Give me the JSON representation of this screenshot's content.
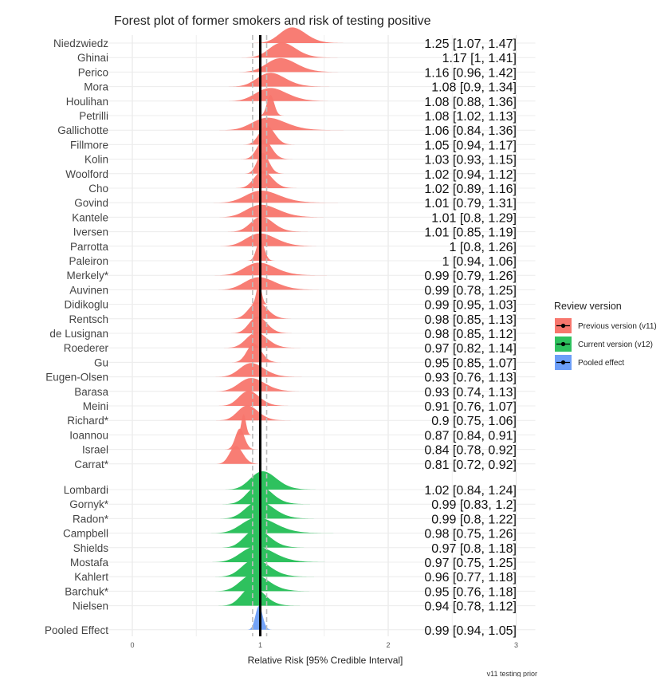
{
  "chart_data": {
    "type": "forest-ridgeline",
    "title": "Forest plot of former smokers and risk of testing positive",
    "xlabel": "Relative Risk [95% Credible Interval]",
    "xlim": [
      -0.2,
      3.15
    ],
    "xticks": [
      0,
      1,
      2,
      3
    ],
    "reference_line": 1,
    "pooled_interval": [
      0.94,
      1.05
    ],
    "caption": "v11 testing prior",
    "legend": {
      "title": "Review version",
      "position": "right",
      "entries": [
        {
          "label": "Previous version (v11)",
          "color": "#F8766D"
        },
        {
          "label": "Current version (v12)",
          "color": "#2EC15E"
        },
        {
          "label": "Pooled effect",
          "color": "#6C9EF8"
        }
      ]
    },
    "groups": [
      {
        "name": "Previous version (v11)",
        "color": "#F8766D",
        "studies": [
          {
            "study": "Niedzwiedz",
            "rr": 1.25,
            "lo": 1.07,
            "hi": 1.47,
            "label": "1.25 [1.07, 1.47]"
          },
          {
            "study": "Ghinai",
            "rr": 1.17,
            "lo": 1,
            "hi": 1.41,
            "label": "1.17 [1, 1.41]"
          },
          {
            "study": "Perico",
            "rr": 1.16,
            "lo": 0.96,
            "hi": 1.42,
            "label": "1.16 [0.96, 1.42]"
          },
          {
            "study": "Mora",
            "rr": 1.08,
            "lo": 0.9,
            "hi": 1.34,
            "label": "1.08 [0.9, 1.34]"
          },
          {
            "study": "Houlihan",
            "rr": 1.08,
            "lo": 0.88,
            "hi": 1.36,
            "label": "1.08 [0.88, 1.36]"
          },
          {
            "study": "Petrilli",
            "rr": 1.08,
            "lo": 1.02,
            "hi": 1.13,
            "label": "1.08 [1.02, 1.13]"
          },
          {
            "study": "Gallichotte",
            "rr": 1.06,
            "lo": 0.84,
            "hi": 1.36,
            "label": "1.06 [0.84, 1.36]"
          },
          {
            "study": "Fillmore",
            "rr": 1.05,
            "lo": 0.94,
            "hi": 1.17,
            "label": "1.05 [0.94, 1.17]"
          },
          {
            "study": "Kolin",
            "rr": 1.03,
            "lo": 0.93,
            "hi": 1.15,
            "label": "1.03 [0.93, 1.15]"
          },
          {
            "study": "Woolford",
            "rr": 1.02,
            "lo": 0.94,
            "hi": 1.12,
            "label": "1.02 [0.94, 1.12]"
          },
          {
            "study": "Cho",
            "rr": 1.02,
            "lo": 0.89,
            "hi": 1.16,
            "label": "1.02 [0.89, 1.16]"
          },
          {
            "study": "Govind",
            "rr": 1.01,
            "lo": 0.79,
            "hi": 1.31,
            "label": "1.01 [0.79, 1.31]"
          },
          {
            "study": "Kantele",
            "rr": 1.01,
            "lo": 0.8,
            "hi": 1.29,
            "label": "1.01 [0.8, 1.29]"
          },
          {
            "study": "Iversen",
            "rr": 1.01,
            "lo": 0.85,
            "hi": 1.19,
            "label": "1.01 [0.85, 1.19]"
          },
          {
            "study": "Parrotta",
            "rr": 1,
            "lo": 0.8,
            "hi": 1.26,
            "label": "1 [0.8, 1.26]"
          },
          {
            "study": "Paleiron",
            "rr": 1,
            "lo": 0.94,
            "hi": 1.06,
            "label": "1 [0.94, 1.06]"
          },
          {
            "study": "Merkely*",
            "rr": 0.99,
            "lo": 0.79,
            "hi": 1.26,
            "label": "0.99 [0.79, 1.26]"
          },
          {
            "study": "Auvinen",
            "rr": 0.99,
            "lo": 0.78,
            "hi": 1.25,
            "label": "0.99 [0.78, 1.25]"
          },
          {
            "study": "Didikoglu",
            "rr": 0.99,
            "lo": 0.95,
            "hi": 1.03,
            "label": "0.99 [0.95, 1.03]"
          },
          {
            "study": "Rentsch",
            "rr": 0.98,
            "lo": 0.85,
            "hi": 1.13,
            "label": "0.98 [0.85, 1.13]"
          },
          {
            "study": "de Lusignan",
            "rr": 0.98,
            "lo": 0.85,
            "hi": 1.12,
            "label": "0.98 [0.85, 1.12]"
          },
          {
            "study": "Roederer",
            "rr": 0.97,
            "lo": 0.82,
            "hi": 1.14,
            "label": "0.97 [0.82, 1.14]"
          },
          {
            "study": "Gu",
            "rr": 0.95,
            "lo": 0.85,
            "hi": 1.07,
            "label": "0.95 [0.85, 1.07]"
          },
          {
            "study": "Eugen-Olsen",
            "rr": 0.93,
            "lo": 0.76,
            "hi": 1.13,
            "label": "0.93 [0.76, 1.13]"
          },
          {
            "study": "Barasa",
            "rr": 0.93,
            "lo": 0.74,
            "hi": 1.13,
            "label": "0.93 [0.74, 1.13]"
          },
          {
            "study": "Meini",
            "rr": 0.91,
            "lo": 0.76,
            "hi": 1.07,
            "label": "0.91 [0.76, 1.07]"
          },
          {
            "study": "Richard*",
            "rr": 0.9,
            "lo": 0.75,
            "hi": 1.06,
            "label": "0.9 [0.75, 1.06]"
          },
          {
            "study": "Ioannou",
            "rr": 0.87,
            "lo": 0.84,
            "hi": 0.91,
            "label": "0.87 [0.84, 0.91]"
          },
          {
            "study": "Israel",
            "rr": 0.84,
            "lo": 0.78,
            "hi": 0.92,
            "label": "0.84 [0.78, 0.92]"
          },
          {
            "study": "Carrat*",
            "rr": 0.81,
            "lo": 0.72,
            "hi": 0.92,
            "label": "0.81 [0.72, 0.92]"
          }
        ]
      },
      {
        "name": "Current version (v12)",
        "color": "#2EC15E",
        "studies": [
          {
            "study": "Lombardi",
            "rr": 1.02,
            "lo": 0.84,
            "hi": 1.24,
            "label": "1.02 [0.84, 1.24]"
          },
          {
            "study": "Gornyk*",
            "rr": 0.99,
            "lo": 0.83,
            "hi": 1.2,
            "label": "0.99 [0.83, 1.2]"
          },
          {
            "study": "Radon*",
            "rr": 0.99,
            "lo": 0.8,
            "hi": 1.22,
            "label": "0.99 [0.8, 1.22]"
          },
          {
            "study": "Campbell",
            "rr": 0.98,
            "lo": 0.75,
            "hi": 1.26,
            "label": "0.98 [0.75, 1.26]"
          },
          {
            "study": "Shields",
            "rr": 0.97,
            "lo": 0.8,
            "hi": 1.18,
            "label": "0.97 [0.8, 1.18]"
          },
          {
            "study": "Mostafa",
            "rr": 0.97,
            "lo": 0.75,
            "hi": 1.25,
            "label": "0.97 [0.75, 1.25]"
          },
          {
            "study": "Kahlert",
            "rr": 0.96,
            "lo": 0.77,
            "hi": 1.18,
            "label": "0.96 [0.77, 1.18]"
          },
          {
            "study": "Barchuk*",
            "rr": 0.95,
            "lo": 0.76,
            "hi": 1.18,
            "label": "0.95 [0.76, 1.18]"
          },
          {
            "study": "Nielsen",
            "rr": 0.94,
            "lo": 0.78,
            "hi": 1.12,
            "label": "0.94 [0.78, 1.12]"
          }
        ]
      },
      {
        "name": "Pooled effect",
        "color": "#6C9EF8",
        "studies": [
          {
            "study": "Pooled Effect",
            "rr": 0.99,
            "lo": 0.94,
            "hi": 1.05,
            "label": "0.99 [0.94, 1.05]"
          }
        ]
      }
    ]
  }
}
